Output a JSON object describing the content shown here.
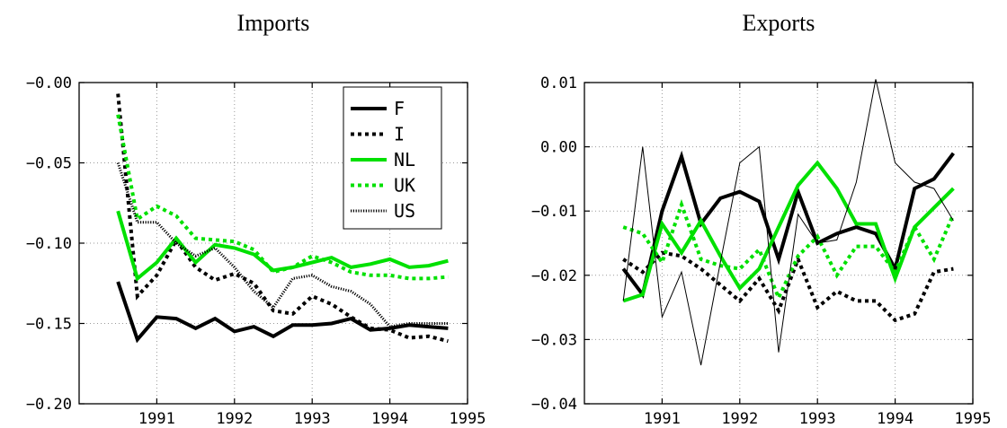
{
  "chart_data": [
    {
      "type": "line",
      "title": "Imports",
      "xlabel": "",
      "ylabel": "",
      "xlim": [
        1990.0,
        1995.0
      ],
      "ylim": [
        -0.2,
        0.0
      ],
      "xticks": [
        1991,
        1992,
        1993,
        1994,
        1995
      ],
      "xtick_labels": [
        "1991",
        "1992",
        "1993",
        "1994",
        "1995"
      ],
      "yticks": [
        0.0,
        -0.05,
        -0.1,
        -0.15,
        -0.2
      ],
      "ytick_labels": [
        "−0.00",
        "−0.05",
        "−0.10",
        "−0.15",
        "−0.20"
      ],
      "grid": true,
      "legend": "top-right",
      "x": [
        1990.5,
        1990.75,
        1991.0,
        1991.25,
        1991.5,
        1991.75,
        1992.0,
        1992.25,
        1992.5,
        1992.75,
        1993.0,
        1993.25,
        1993.5,
        1993.75,
        1994.0,
        1994.25,
        1994.5,
        1994.75
      ],
      "series": [
        {
          "name": "F",
          "color": "#000000",
          "style": "solid",
          "width": 4,
          "values": [
            -0.124,
            -0.16,
            -0.146,
            -0.147,
            -0.153,
            -0.147,
            -0.155,
            -0.152,
            -0.158,
            -0.151,
            -0.151,
            -0.15,
            -0.147,
            -0.154,
            -0.153,
            -0.151,
            -0.152,
            -0.153
          ]
        },
        {
          "name": "I",
          "color": "#000000",
          "style": "dotted",
          "width": 4,
          "values": [
            -0.007,
            -0.133,
            -0.12,
            -0.098,
            -0.115,
            -0.123,
            -0.119,
            -0.125,
            -0.142,
            -0.144,
            -0.133,
            -0.138,
            -0.146,
            -0.153,
            -0.154,
            -0.159,
            -0.158,
            -0.161
          ]
        },
        {
          "name": "NL",
          "color": "#00e000",
          "style": "solid",
          "width": 4,
          "values": [
            -0.08,
            -0.122,
            -0.112,
            -0.097,
            -0.112,
            -0.101,
            -0.103,
            -0.107,
            -0.117,
            -0.115,
            -0.112,
            -0.109,
            -0.115,
            -0.113,
            -0.11,
            -0.115,
            -0.114,
            -0.111
          ]
        },
        {
          "name": "UK",
          "color": "#00e000",
          "style": "dotted",
          "width": 4,
          "values": [
            -0.02,
            -0.085,
            -0.077,
            -0.083,
            -0.097,
            -0.098,
            -0.099,
            -0.104,
            -0.118,
            -0.115,
            -0.108,
            -0.112,
            -0.118,
            -0.12,
            -0.12,
            -0.122,
            -0.122,
            -0.121
          ]
        },
        {
          "name": "US",
          "color": "#000000",
          "style": "hatched",
          "width": 3,
          "values": [
            -0.05,
            -0.087,
            -0.087,
            -0.1,
            -0.108,
            -0.103,
            -0.115,
            -0.13,
            -0.14,
            -0.122,
            -0.12,
            -0.127,
            -0.13,
            -0.138,
            -0.152,
            -0.15,
            -0.15,
            -0.15
          ]
        }
      ]
    },
    {
      "type": "line",
      "title": "Exports",
      "xlabel": "",
      "ylabel": "",
      "xlim": [
        1990.0,
        1995.0
      ],
      "ylim": [
        -0.04,
        0.01
      ],
      "xticks": [
        1991,
        1992,
        1993,
        1994,
        1995
      ],
      "xtick_labels": [
        "1991",
        "1992",
        "1993",
        "1994",
        "1995"
      ],
      "yticks": [
        0.01,
        0.0,
        -0.01,
        -0.02,
        -0.03,
        -0.04
      ],
      "ytick_labels": [
        "0.01",
        "0.00",
        "−0.01",
        "−0.02",
        "−0.03",
        "−0.04"
      ],
      "grid": true,
      "legend": "none",
      "x": [
        1990.5,
        1990.75,
        1991.0,
        1991.25,
        1991.5,
        1991.75,
        1992.0,
        1992.25,
        1992.5,
        1992.75,
        1993.0,
        1993.25,
        1993.5,
        1993.75,
        1994.0,
        1994.25,
        1994.5,
        1994.75
      ],
      "series": [
        {
          "name": "F",
          "color": "#000000",
          "style": "solid",
          "width": 4,
          "values": [
            -0.019,
            -0.023,
            -0.01,
            -0.0015,
            -0.012,
            -0.008,
            -0.007,
            -0.0085,
            -0.0175,
            -0.007,
            -0.015,
            -0.0135,
            -0.0125,
            -0.0135,
            -0.019,
            -0.0065,
            -0.005,
            -0.001
          ]
        },
        {
          "name": "I",
          "color": "#000000",
          "style": "dotted",
          "width": 4,
          "values": [
            -0.0175,
            -0.0195,
            -0.0165,
            -0.017,
            -0.019,
            -0.0215,
            -0.024,
            -0.0205,
            -0.0255,
            -0.0175,
            -0.025,
            -0.0225,
            -0.024,
            -0.024,
            -0.027,
            -0.026,
            -0.0195,
            -0.019
          ]
        },
        {
          "name": "NL",
          "color": "#00e000",
          "style": "solid",
          "width": 4,
          "values": [
            -0.024,
            -0.023,
            -0.012,
            -0.0165,
            -0.0115,
            -0.017,
            -0.022,
            -0.019,
            -0.0125,
            -0.006,
            -0.0025,
            -0.0065,
            -0.012,
            -0.012,
            -0.0205,
            -0.0125,
            -0.0095,
            -0.0065
          ]
        },
        {
          "name": "UK",
          "color": "#00e000",
          "style": "dotted",
          "width": 4,
          "values": [
            -0.0125,
            -0.0135,
            -0.018,
            -0.009,
            -0.0175,
            -0.0185,
            -0.019,
            -0.016,
            -0.0235,
            -0.017,
            -0.014,
            -0.02,
            -0.0155,
            -0.0155,
            -0.0195,
            -0.0125,
            -0.0175,
            -0.0105
          ]
        },
        {
          "name": "US",
          "color": "#000000",
          "style": "thin",
          "width": 1,
          "values": [
            -0.024,
            0.0,
            -0.0265,
            -0.0195,
            -0.034,
            -0.018,
            -0.0025,
            0.0,
            -0.032,
            -0.0105,
            -0.015,
            -0.0145,
            -0.0055,
            0.0105,
            -0.0025,
            -0.0055,
            -0.0065,
            -0.0115
          ]
        }
      ]
    }
  ]
}
